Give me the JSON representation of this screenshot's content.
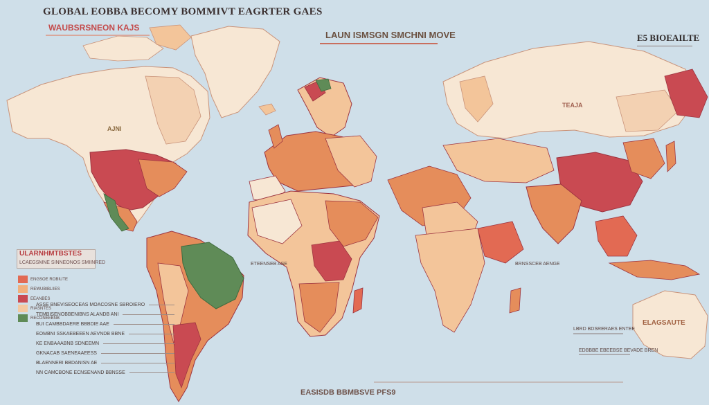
{
  "title": "GLOBAL EOBBA BECOMY BOMMIVT EAGRTER GAES",
  "subtitle": "WAUBSRSNEON KAJS",
  "banner": "LAUN ISMSGN SMCHNI MOVE",
  "corner": "E5 BIOEAILTE",
  "panel": {
    "title": "ULARNHMTBSTES",
    "subtitle": "LCAEGSMNE SINNEONOS SMIINRED"
  },
  "legend": [
    {
      "label": "ENGSOE ROBIUTE",
      "color": "#e26a53"
    },
    {
      "label": "REWUBIBLIIES",
      "color": "#f2b07c"
    },
    {
      "label": "EEANBES",
      "color": "#c94a52"
    },
    {
      "label": "RIASNTES",
      "color": "#f4c9a1"
    },
    {
      "label": "RECONEEBNB",
      "color": "#5f8b57"
    }
  ],
  "table_rows": [
    "ASSE BNEVISEOCEAS MOACOSNE SBROIERO",
    "TEMBISENOBBENIBNS ALANDB ANI",
    "BUI CAMBBDAERE BBBDIE AAE",
    "EOMBNI SSKAEBEEEN AEVNDB BBNE",
    "KE ENBAAABNB SDNEEMN",
    "GKNACAB SAENEAAEESS",
    "BLAENNERI BBDANISN AE",
    "NN CAMCBONE ECNSENAND BBNSSE"
  ],
  "region_labels": {
    "north_america": "AJNI",
    "russia": "TEAJA",
    "africa_caption": "ETEENSEB ASE",
    "asia_caption": "BRNSSCEB AENGE",
    "australia": "ELAGSAUTE"
  },
  "right_notes": [
    "LBRD BDSRERAES ENTEE",
    "EDBBBE EBEEBSE BEVADE BREN"
  ],
  "footer": "EASISDB BBMBSVE PFS9",
  "colors": {
    "ocean": "#cfdfe9",
    "land_light": "#f7e7d4",
    "land_peach": "#f3c59a",
    "land_orange": "#e58d5b",
    "land_red": "#c94a52",
    "land_green": "#5f8b57"
  }
}
